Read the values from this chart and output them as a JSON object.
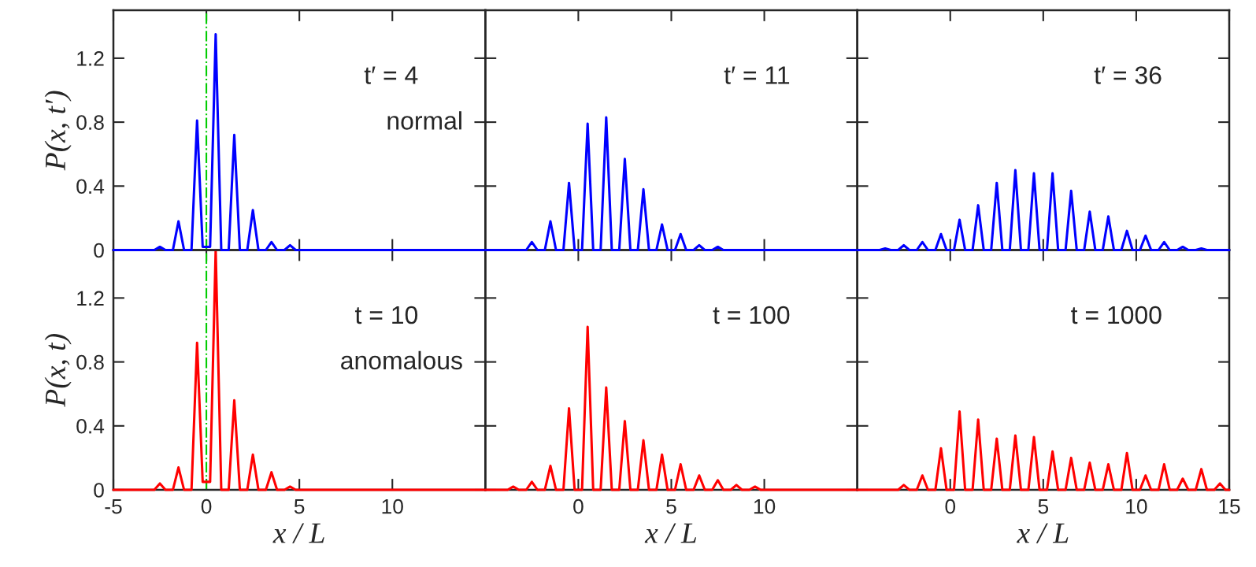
{
  "chart_data": [
    {
      "type": "line",
      "ylabel": "P(x, t′)",
      "xlim": [
        -5,
        15
      ],
      "xticks": [
        -5,
        0,
        5,
        10
      ],
      "ylim": [
        0,
        1.5
      ],
      "yticks": [
        0,
        0.4,
        0.8,
        1.2
      ],
      "tick_labels": "y",
      "annotations": [
        "t′ = 4",
        "normal"
      ],
      "ref_lines": [
        {
          "axis": "x",
          "value": 0,
          "color": "#00cc00",
          "line_style": "dashed"
        }
      ],
      "x": [
        -5,
        -2.8,
        -2.5,
        -2.2,
        -1.8,
        -1.5,
        -1.2,
        -0.8,
        -0.5,
        -0.2,
        0.2,
        0.5,
        0.8,
        1.2,
        1.5,
        1.8,
        2.2,
        2.5,
        2.8,
        3.2,
        3.5,
        3.8,
        4.2,
        4.5,
        4.8,
        15
      ],
      "series": [
        {
          "color": "#0000ff",
          "values": [
            0,
            0,
            0.02,
            0,
            0,
            0.18,
            0,
            0,
            0.81,
            0.02,
            0.02,
            1.35,
            0,
            0,
            0.72,
            0,
            0,
            0.25,
            0,
            0,
            0.05,
            0,
            0,
            0.03,
            0,
            0
          ]
        }
      ]
    },
    {
      "type": "line",
      "xlim": [
        -5,
        15
      ],
      "xticks": [
        0,
        5,
        10
      ],
      "ylim": [
        0,
        1.5
      ],
      "yticks": [
        0,
        0.4,
        0.8,
        1.2
      ],
      "tick_labels": false,
      "annotations": [
        "t′ = 11"
      ],
      "x": [
        -5,
        -2.8,
        -2.5,
        -2.2,
        -1.8,
        -1.5,
        -1.2,
        -0.8,
        -0.5,
        -0.2,
        0.2,
        0.5,
        0.8,
        1.2,
        1.5,
        1.8,
        2.2,
        2.5,
        2.8,
        3.2,
        3.5,
        3.8,
        4.2,
        4.5,
        4.8,
        5.2,
        5.5,
        5.8,
        6.2,
        6.5,
        6.8,
        7.2,
        7.5,
        7.8,
        15
      ],
      "series": [
        {
          "color": "#0000ff",
          "values": [
            0,
            0,
            0.05,
            0,
            0,
            0.18,
            0,
            0,
            0.42,
            0,
            0,
            0.79,
            0,
            0,
            0.83,
            0,
            0,
            0.57,
            0,
            0,
            0.38,
            0,
            0,
            0.16,
            0,
            0,
            0.1,
            0,
            0,
            0.03,
            0,
            0,
            0.02,
            0,
            0
          ]
        }
      ]
    },
    {
      "type": "line",
      "xlim": [
        -5,
        15
      ],
      "xticks": [
        0,
        5,
        10,
        15
      ],
      "ylim": [
        0,
        1.5
      ],
      "yticks": [
        0,
        0.4,
        0.8,
        1.2
      ],
      "tick_labels": false,
      "annotations": [
        "t′ = 36"
      ],
      "x": [
        -5,
        -3.8,
        -3.5,
        -3.2,
        -2.8,
        -2.5,
        -2.2,
        -1.8,
        -1.5,
        -1.2,
        -0.8,
        -0.5,
        -0.2,
        0.2,
        0.5,
        0.8,
        1.2,
        1.5,
        1.8,
        2.2,
        2.5,
        2.8,
        3.2,
        3.5,
        3.8,
        4.2,
        4.5,
        4.8,
        5.2,
        5.5,
        5.8,
        6.2,
        6.5,
        6.8,
        7.2,
        7.5,
        7.8,
        8.2,
        8.5,
        8.8,
        9.2,
        9.5,
        9.8,
        10.2,
        10.5,
        10.8,
        11.2,
        11.5,
        11.8,
        12.2,
        12.5,
        12.8,
        13.2,
        13.5,
        13.8,
        15
      ],
      "series": [
        {
          "color": "#0000ff",
          "values": [
            0,
            0,
            0.01,
            0,
            0,
            0.03,
            0,
            0,
            0.05,
            0,
            0,
            0.1,
            0,
            0,
            0.19,
            0,
            0,
            0.28,
            0,
            0,
            0.42,
            0,
            0,
            0.5,
            0,
            0,
            0.48,
            0,
            0,
            0.48,
            0,
            0,
            0.37,
            0,
            0,
            0.24,
            0,
            0,
            0.21,
            0,
            0,
            0.12,
            0,
            0,
            0.09,
            0,
            0,
            0.05,
            0,
            0,
            0.02,
            0,
            0,
            0.01,
            0,
            0
          ]
        }
      ]
    },
    {
      "type": "line",
      "ylabel": "P(x, t)",
      "xlabel": "x / L",
      "xlim": [
        -5,
        15
      ],
      "xticks": [
        -5,
        0,
        5,
        10
      ],
      "ylim": [
        0,
        1.5
      ],
      "yticks": [
        0,
        0.4,
        0.8,
        1.2
      ],
      "annotations": [
        "t = 10",
        "anomalous"
      ],
      "ref_lines": [
        {
          "axis": "x",
          "value": 0,
          "color": "#00cc00",
          "line_style": "dashed"
        }
      ],
      "x": [
        -5,
        -2.8,
        -2.5,
        -2.2,
        -1.8,
        -1.5,
        -1.2,
        -0.8,
        -0.5,
        -0.2,
        0.2,
        0.5,
        0.8,
        1.2,
        1.5,
        1.8,
        2.2,
        2.5,
        2.8,
        3.2,
        3.5,
        3.8,
        4.2,
        4.5,
        4.8,
        15
      ],
      "series": [
        {
          "color": "#ff0000",
          "values": [
            0,
            0,
            0.04,
            0,
            0,
            0.14,
            0,
            0,
            0.92,
            0.05,
            0.05,
            1.5,
            0,
            0,
            0.56,
            0,
            0,
            0.22,
            0,
            0,
            0.11,
            0,
            0,
            0.02,
            0,
            0
          ]
        }
      ]
    },
    {
      "type": "line",
      "xlabel": "x / L",
      "xlim": [
        -5,
        15
      ],
      "xticks": [
        0,
        5,
        10
      ],
      "ylim": [
        0,
        1.5
      ],
      "yticks": [
        0,
        0.4,
        0.8,
        1.2
      ],
      "tick_labels": "x",
      "annotations": [
        "t = 100"
      ],
      "x": [
        -5,
        -3.8,
        -3.5,
        -3.2,
        -2.8,
        -2.5,
        -2.2,
        -1.8,
        -1.5,
        -1.2,
        -0.8,
        -0.5,
        -0.2,
        0.2,
        0.5,
        0.8,
        1.2,
        1.5,
        1.8,
        2.2,
        2.5,
        2.8,
        3.2,
        3.5,
        3.8,
        4.2,
        4.5,
        4.8,
        5.2,
        5.5,
        5.8,
        6.2,
        6.5,
        6.8,
        7.2,
        7.5,
        7.8,
        8.2,
        8.5,
        8.8,
        9.2,
        9.5,
        9.8,
        15
      ],
      "series": [
        {
          "color": "#ff0000",
          "values": [
            0,
            0,
            0.02,
            0,
            0,
            0.05,
            0,
            0,
            0.15,
            0,
            0,
            0.51,
            0,
            0,
            1.02,
            0,
            0,
            0.64,
            0,
            0,
            0.43,
            0,
            0,
            0.31,
            0,
            0,
            0.22,
            0,
            0,
            0.16,
            0,
            0,
            0.09,
            0,
            0,
            0.06,
            0,
            0,
            0.03,
            0,
            0,
            0.02,
            0,
            0
          ]
        }
      ]
    },
    {
      "type": "line",
      "xlabel": "x / L",
      "xlim": [
        -5,
        15
      ],
      "xticks": [
        0,
        5,
        10,
        15
      ],
      "ylim": [
        0,
        1.5
      ],
      "yticks": [
        0,
        0.4,
        0.8,
        1.2
      ],
      "tick_labels": "x",
      "annotations": [
        "t = 1000"
      ],
      "x": [
        -5,
        -2.8,
        -2.5,
        -2.2,
        -1.8,
        -1.5,
        -1.2,
        -0.8,
        -0.5,
        -0.2,
        0.2,
        0.5,
        0.8,
        1.2,
        1.5,
        1.8,
        2.2,
        2.5,
        2.8,
        3.2,
        3.5,
        3.8,
        4.2,
        4.5,
        4.8,
        5.2,
        5.5,
        5.8,
        6.2,
        6.5,
        6.8,
        7.2,
        7.5,
        7.8,
        8.2,
        8.5,
        8.8,
        9.2,
        9.5,
        9.8,
        10.2,
        10.5,
        10.8,
        11.2,
        11.5,
        11.8,
        12.2,
        12.5,
        12.8,
        13.2,
        13.5,
        13.8,
        14.2,
        14.5,
        14.8,
        15
      ],
      "series": [
        {
          "color": "#ff0000",
          "values": [
            0,
            0,
            0.03,
            0,
            0,
            0.09,
            0,
            0,
            0.26,
            0,
            0,
            0.49,
            0,
            0,
            0.44,
            0,
            0,
            0.32,
            0,
            0,
            0.34,
            0,
            0,
            0.33,
            0,
            0,
            0.24,
            0,
            0,
            0.2,
            0,
            0,
            0.17,
            0,
            0,
            0.16,
            0,
            0,
            0.23,
            0,
            0,
            0.09,
            0,
            0,
            0.16,
            0,
            0,
            0.07,
            0,
            0,
            0.13,
            0,
            0,
            0.04,
            0,
            0
          ]
        }
      ]
    }
  ]
}
